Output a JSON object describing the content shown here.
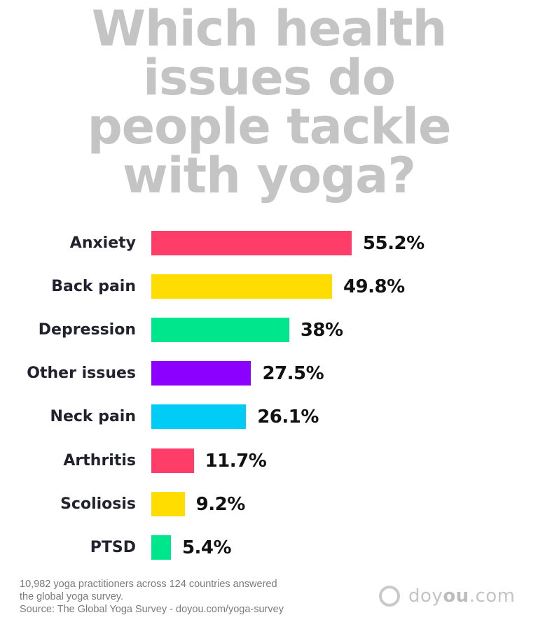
{
  "title": {
    "lines": [
      "Which health",
      "issues do",
      "people tackle",
      "with yoga?"
    ],
    "color": "#c4c4c4"
  },
  "chart_data": {
    "type": "bar",
    "orientation": "horizontal",
    "title": "Which health issues do people tackle with yoga?",
    "categories": [
      "Anxiety",
      "Back pain",
      "Depression",
      "Other issues",
      "Neck pain",
      "Arthritis",
      "Scoliosis",
      "PTSD"
    ],
    "values": [
      55.2,
      49.8,
      38,
      27.5,
      26.1,
      11.7,
      9.2,
      5.4
    ],
    "value_labels": [
      "55.2%",
      "49.8%",
      "38%",
      "27.5%",
      "26.1%",
      "11.7%",
      "9.2%",
      "5.4%"
    ],
    "colors": [
      "#ff3d68",
      "#ffdd00",
      "#00e68c",
      "#8c00ff",
      "#00ccf5",
      "#ff3d68",
      "#ffdd00",
      "#00e68c"
    ],
    "xlabel": "",
    "ylabel": "",
    "unit": "%",
    "grid": false,
    "legend": "none",
    "xlim": [
      0,
      100
    ]
  },
  "footer": {
    "note_line1": "10,982 yoga practitioners across 124 countries answered",
    "note_line2": "the global yoga survey.",
    "source": "Source: The Global Yoga Survey - doyou.com/yoga-survey"
  },
  "logo": {
    "part1": "doy",
    "part2": "ou",
    "part3": ".com"
  }
}
